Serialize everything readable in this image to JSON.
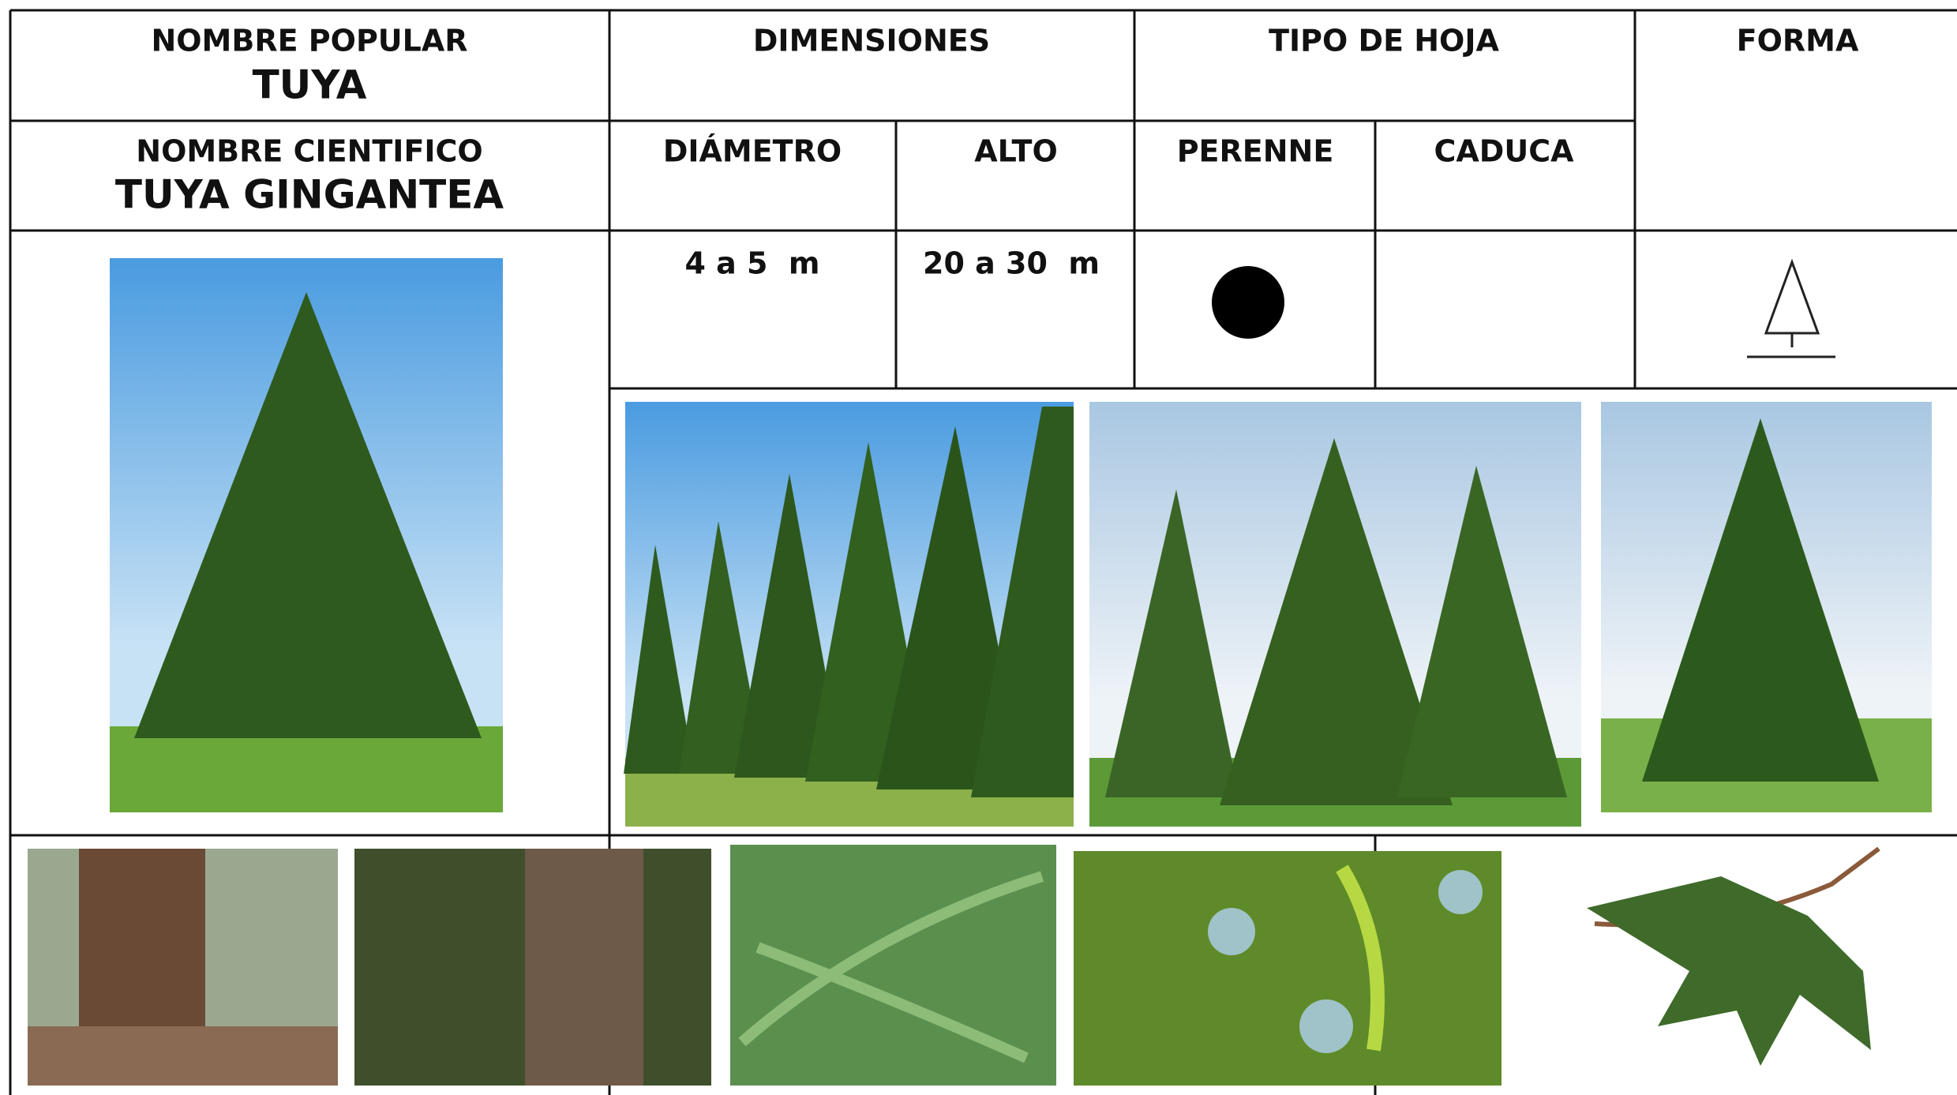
{
  "header": {
    "popular_label": "NOMBRE POPULAR",
    "popular_name": "TUYA",
    "scientific_label": "NOMBRE CIENTIFICO",
    "scientific_name": "TUYA GINGANTEA"
  },
  "columns": {
    "dimensions": "DIMENSIONES",
    "leaf_type": "TIPO DE HOJA",
    "shape": "FORMA",
    "diameter": "DIÁMETRO",
    "height": "ALTO",
    "evergreen": "PERENNE",
    "deciduous": "CADUCA"
  },
  "values": {
    "diameter": "4 a 5  m",
    "height": "20 a 30  m"
  }
}
